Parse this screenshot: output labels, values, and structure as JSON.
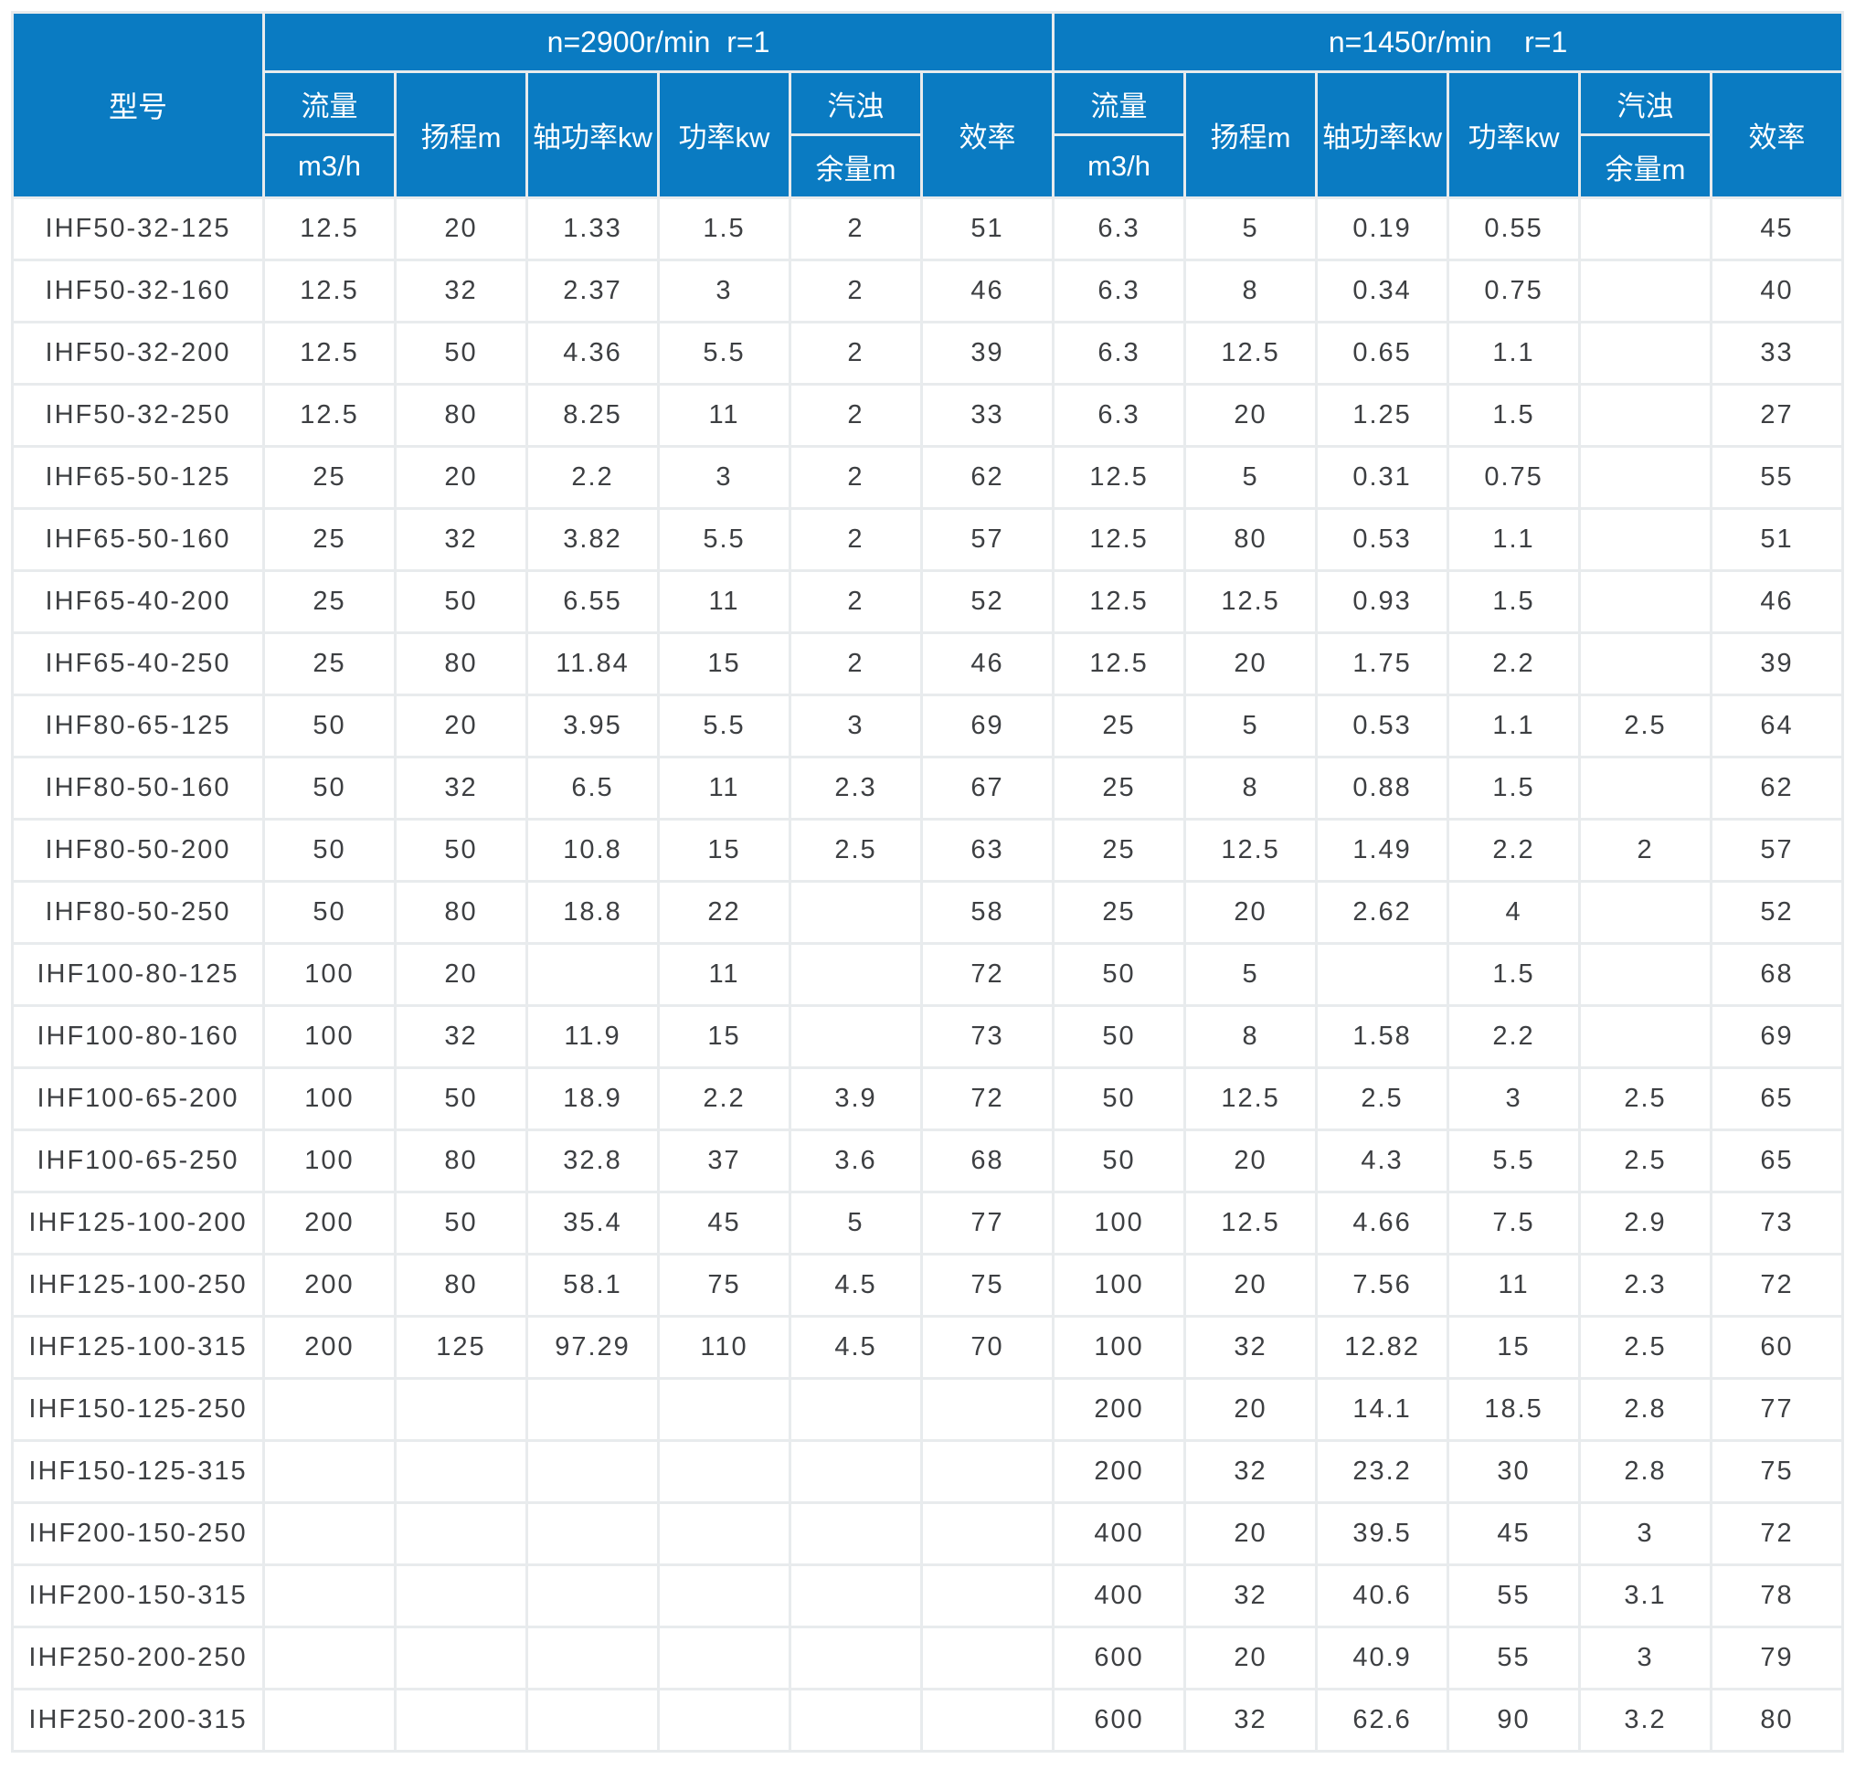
{
  "colors": {
    "header_bg": "#0a7bc2",
    "header_text": "#ffffff",
    "grid_gap": "#e8ebed",
    "cell_bg": "#ffffff",
    "cell_text": "#3d3f42",
    "page_bg": "#ffffff"
  },
  "table": {
    "header": {
      "model": "型号",
      "group_2900": "n=2900r/min  r=1",
      "group_1450": "n=1450r/min    r=1",
      "flow": "流量",
      "flow_unit": "m3/h",
      "head": "扬程m",
      "shaft_power": "轴功率kw",
      "power": "功率kw",
      "cavitation": "汽浊",
      "cavitation_unit": "余量m",
      "efficiency": "效率"
    },
    "rows": [
      {
        "model": "IHF50-32-125",
        "n2900": [
          "12.5",
          "20",
          "1.33",
          "1.5",
          "2",
          "51"
        ],
        "n1450": [
          "6.3",
          "5",
          "0.19",
          "0.55",
          "",
          "45"
        ]
      },
      {
        "model": "IHF50-32-160",
        "n2900": [
          "12.5",
          "32",
          "2.37",
          "3",
          "2",
          "46"
        ],
        "n1450": [
          "6.3",
          "8",
          "0.34",
          "0.75",
          "",
          "40"
        ]
      },
      {
        "model": "IHF50-32-200",
        "n2900": [
          "12.5",
          "50",
          "4.36",
          "5.5",
          "2",
          "39"
        ],
        "n1450": [
          "6.3",
          "12.5",
          "0.65",
          "1.1",
          "",
          "33"
        ]
      },
      {
        "model": "IHF50-32-250",
        "n2900": [
          "12.5",
          "80",
          "8.25",
          "11",
          "2",
          "33"
        ],
        "n1450": [
          "6.3",
          "20",
          "1.25",
          "1.5",
          "",
          "27"
        ]
      },
      {
        "model": "IHF65-50-125",
        "n2900": [
          "25",
          "20",
          "2.2",
          "3",
          "2",
          "62"
        ],
        "n1450": [
          "12.5",
          "5",
          "0.31",
          "0.75",
          "",
          "55"
        ]
      },
      {
        "model": "IHF65-50-160",
        "n2900": [
          "25",
          "32",
          "3.82",
          "5.5",
          "2",
          "57"
        ],
        "n1450": [
          "12.5",
          "80",
          "0.53",
          "1.1",
          "",
          "51"
        ]
      },
      {
        "model": "IHF65-40-200",
        "n2900": [
          "25",
          "50",
          "6.55",
          "11",
          "2",
          "52"
        ],
        "n1450": [
          "12.5",
          "12.5",
          "0.93",
          "1.5",
          "",
          "46"
        ]
      },
      {
        "model": "IHF65-40-250",
        "n2900": [
          "25",
          "80",
          "11.84",
          "15",
          "2",
          "46"
        ],
        "n1450": [
          "12.5",
          "20",
          "1.75",
          "2.2",
          "",
          "39"
        ]
      },
      {
        "model": "IHF80-65-125",
        "n2900": [
          "50",
          "20",
          "3.95",
          "5.5",
          "3",
          "69"
        ],
        "n1450": [
          "25",
          "5",
          "0.53",
          "1.1",
          "2.5",
          "64"
        ]
      },
      {
        "model": "IHF80-50-160",
        "n2900": [
          "50",
          "32",
          "6.5",
          "11",
          "2.3",
          "67"
        ],
        "n1450": [
          "25",
          "8",
          "0.88",
          "1.5",
          "",
          "62"
        ]
      },
      {
        "model": "IHF80-50-200",
        "n2900": [
          "50",
          "50",
          "10.8",
          "15",
          "2.5",
          "63"
        ],
        "n1450": [
          "25",
          "12.5",
          "1.49",
          "2.2",
          "2",
          "57"
        ]
      },
      {
        "model": "IHF80-50-250",
        "n2900": [
          "50",
          "80",
          "18.8",
          "22",
          "",
          "58"
        ],
        "n1450": [
          "25",
          "20",
          "2.62",
          "4",
          "",
          "52"
        ]
      },
      {
        "model": "IHF100-80-125",
        "n2900": [
          "100",
          "20",
          "",
          "11",
          "",
          "72"
        ],
        "n1450": [
          "50",
          "5",
          "",
          "1.5",
          "",
          "68"
        ]
      },
      {
        "model": "IHF100-80-160",
        "n2900": [
          "100",
          "32",
          "11.9",
          "15",
          "",
          "73"
        ],
        "n1450": [
          "50",
          "8",
          "1.58",
          "2.2",
          "",
          "69"
        ]
      },
      {
        "model": "IHF100-65-200",
        "n2900": [
          "100",
          "50",
          "18.9",
          "2.2",
          "3.9",
          "72"
        ],
        "n1450": [
          "50",
          "12.5",
          "2.5",
          "3",
          "2.5",
          "65"
        ]
      },
      {
        "model": "IHF100-65-250",
        "n2900": [
          "100",
          "80",
          "32.8",
          "37",
          "3.6",
          "68"
        ],
        "n1450": [
          "50",
          "20",
          "4.3",
          "5.5",
          "2.5",
          "65"
        ]
      },
      {
        "model": "IHF125-100-200",
        "n2900": [
          "200",
          "50",
          "35.4",
          "45",
          "5",
          "77"
        ],
        "n1450": [
          "100",
          "12.5",
          "4.66",
          "7.5",
          "2.9",
          "73"
        ]
      },
      {
        "model": "IHF125-100-250",
        "n2900": [
          "200",
          "80",
          "58.1",
          "75",
          "4.5",
          "75"
        ],
        "n1450": [
          "100",
          "20",
          "7.56",
          "11",
          "2.3",
          "72"
        ]
      },
      {
        "model": "IHF125-100-315",
        "n2900": [
          "200",
          "125",
          "97.29",
          "110",
          "4.5",
          "70"
        ],
        "n1450": [
          "100",
          "32",
          "12.82",
          "15",
          "2.5",
          "60"
        ]
      },
      {
        "model": "IHF150-125-250",
        "n2900": [
          "",
          "",
          "",
          "",
          "",
          ""
        ],
        "n1450": [
          "200",
          "20",
          "14.1",
          "18.5",
          "2.8",
          "77"
        ]
      },
      {
        "model": "IHF150-125-315",
        "n2900": [
          "",
          "",
          "",
          "",
          "",
          ""
        ],
        "n1450": [
          "200",
          "32",
          "23.2",
          "30",
          "2.8",
          "75"
        ]
      },
      {
        "model": "IHF200-150-250",
        "n2900": [
          "",
          "",
          "",
          "",
          "",
          ""
        ],
        "n1450": [
          "400",
          "20",
          "39.5",
          "45",
          "3",
          "72"
        ]
      },
      {
        "model": "IHF200-150-315",
        "n2900": [
          "",
          "",
          "",
          "",
          "",
          ""
        ],
        "n1450": [
          "400",
          "32",
          "40.6",
          "55",
          "3.1",
          "78"
        ]
      },
      {
        "model": "IHF250-200-250",
        "n2900": [
          "",
          "",
          "",
          "",
          "",
          ""
        ],
        "n1450": [
          "600",
          "20",
          "40.9",
          "55",
          "3",
          "79"
        ]
      },
      {
        "model": "IHF250-200-315",
        "n2900": [
          "",
          "",
          "",
          "",
          "",
          ""
        ],
        "n1450": [
          "600",
          "32",
          "62.6",
          "90",
          "3.2",
          "80"
        ]
      }
    ]
  }
}
